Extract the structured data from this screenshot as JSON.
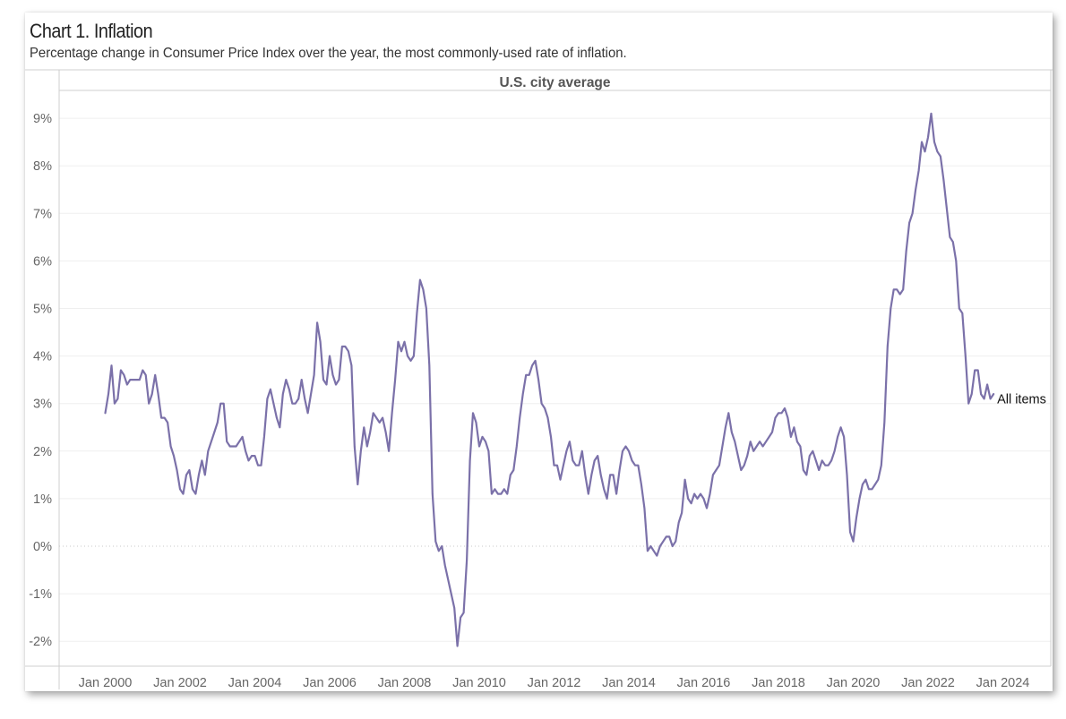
{
  "title": "Chart 1. Inflation",
  "subtitle": "Percentage change in Consumer Price Index over the year, the most commonly-used rate of inflation.",
  "chart_data": {
    "type": "line",
    "panel_title": "U.S. city average",
    "series": [
      {
        "name": "All items",
        "color": "#7b71a9",
        "start": "Jan 2000",
        "frequency": "monthly",
        "values": [
          2.8,
          3.2,
          3.8,
          3.0,
          3.1,
          3.7,
          3.6,
          3.4,
          3.5,
          3.5,
          3.5,
          3.5,
          3.7,
          3.6,
          3.0,
          3.2,
          3.6,
          3.2,
          2.7,
          2.7,
          2.6,
          2.1,
          1.9,
          1.6,
          1.2,
          1.1,
          1.5,
          1.6,
          1.2,
          1.1,
          1.5,
          1.8,
          1.5,
          2.0,
          2.2,
          2.4,
          2.6,
          3.0,
          3.0,
          2.2,
          2.1,
          2.1,
          2.1,
          2.2,
          2.3,
          2.0,
          1.8,
          1.9,
          1.9,
          1.7,
          1.7,
          2.3,
          3.1,
          3.3,
          3.0,
          2.7,
          2.5,
          3.2,
          3.5,
          3.3,
          3.0,
          3.0,
          3.1,
          3.5,
          3.1,
          2.8,
          3.2,
          3.6,
          4.7,
          4.3,
          3.5,
          3.4,
          4.0,
          3.6,
          3.4,
          3.5,
          4.2,
          4.2,
          4.1,
          3.8,
          2.1,
          1.3,
          2.0,
          2.5,
          2.1,
          2.4,
          2.8,
          2.7,
          2.6,
          2.7,
          2.4,
          2.0,
          2.8,
          3.5,
          4.3,
          4.1,
          4.3,
          4.0,
          3.9,
          4.0,
          4.9,
          5.6,
          5.4,
          5.0,
          3.8,
          1.1,
          0.1,
          -0.1,
          0.0,
          -0.4,
          -0.7,
          -1.0,
          -1.3,
          -2.1,
          -1.5,
          -1.4,
          -0.3,
          1.8,
          2.8,
          2.6,
          2.1,
          2.3,
          2.2,
          2.0,
          1.1,
          1.2,
          1.1,
          1.1,
          1.2,
          1.1,
          1.5,
          1.6,
          2.1,
          2.7,
          3.2,
          3.6,
          3.6,
          3.8,
          3.9,
          3.5,
          3.0,
          2.9,
          2.7,
          2.3,
          1.7,
          1.7,
          1.4,
          1.7,
          2.0,
          2.2,
          1.8,
          1.7,
          1.7,
          2.0,
          1.5,
          1.1,
          1.5,
          1.8,
          1.9,
          1.5,
          1.2,
          1.0,
          1.5,
          1.5,
          1.1,
          1.6,
          2.0,
          2.1,
          2.0,
          1.8,
          1.7,
          1.7,
          1.3,
          0.8,
          -0.1,
          0.0,
          -0.1,
          -0.2,
          0.0,
          0.1,
          0.2,
          0.2,
          0.0,
          0.1,
          0.5,
          0.7,
          1.4,
          1.0,
          0.9,
          1.1,
          1.0,
          1.1,
          1.0,
          0.8,
          1.1,
          1.5,
          1.6,
          1.7,
          2.1,
          2.5,
          2.8,
          2.4,
          2.2,
          1.9,
          1.6,
          1.7,
          1.9,
          2.2,
          2.0,
          2.1,
          2.2,
          2.1,
          2.2,
          2.3,
          2.4,
          2.7,
          2.8,
          2.8,
          2.9,
          2.7,
          2.3,
          2.5,
          2.2,
          2.1,
          1.6,
          1.5,
          1.9,
          2.0,
          1.8,
          1.6,
          1.8,
          1.7,
          1.7,
          1.8,
          2.0,
          2.3,
          2.5,
          2.3,
          1.5,
          0.3,
          0.1,
          0.6,
          1.0,
          1.3,
          1.4,
          1.2,
          1.2,
          1.3,
          1.4,
          1.7,
          2.6,
          4.2,
          5.0,
          5.4,
          5.4,
          5.3,
          5.4,
          6.2,
          6.8,
          7.0,
          7.5,
          7.9,
          8.5,
          8.3,
          8.6,
          9.1,
          8.5,
          8.3,
          8.2,
          7.7,
          7.1,
          6.5,
          6.4,
          6.0,
          5.0,
          4.9,
          4.0,
          3.0,
          3.2,
          3.7,
          3.7,
          3.2,
          3.1,
          3.4,
          3.1,
          3.2
        ]
      }
    ],
    "x_ticks": [
      "Jan 2000",
      "Jan 2002",
      "Jan 2004",
      "Jan 2006",
      "Jan 2008",
      "Jan 2010",
      "Jan 2012",
      "Jan 2014",
      "Jan 2016",
      "Jan 2018",
      "Jan 2020",
      "Jan 2022",
      "Jan 2024"
    ],
    "y_ticks": [
      "-2%",
      "-1%",
      "0%",
      "1%",
      "2%",
      "3%",
      "4%",
      "5%",
      "6%",
      "7%",
      "8%",
      "9%"
    ],
    "ylim": [
      -2.5,
      9.4
    ],
    "grid": true,
    "zero_line": "dotted"
  }
}
